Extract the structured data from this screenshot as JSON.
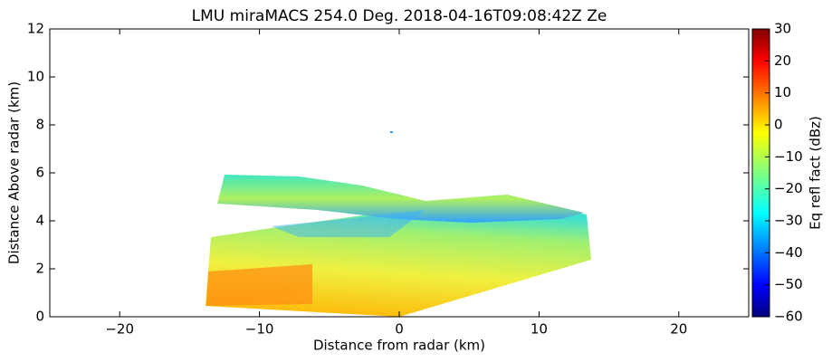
{
  "chart_data": {
    "type": "heatmap",
    "title": "LMU miraMACS 254.0 Deg. 2018-04-16T09:08:42Z  Ze",
    "x_label": "Distance from radar (km)",
    "y_label": "Distance Above radar  (km)",
    "colorbar_label": "Eq refl fact (dBz)",
    "xlim": [
      -25,
      25
    ],
    "xticks": [
      {
        "value": -20,
        "label": "−20"
      },
      {
        "value": -10,
        "label": "−10"
      },
      0,
      10,
      20
    ],
    "ylim": [
      0,
      12
    ],
    "yticks": [
      0,
      2,
      4,
      6,
      8,
      10,
      12
    ],
    "clim": [
      -60,
      30
    ],
    "cticks": [
      {
        "value": -60,
        "label": "−60"
      },
      {
        "value": -50,
        "label": "−50"
      },
      {
        "value": -40,
        "label": "−40"
      },
      {
        "value": -30,
        "label": "−30"
      },
      {
        "value": -20,
        "label": "−20"
      },
      {
        "value": -10,
        "label": "−10"
      },
      0,
      10,
      20,
      30
    ]
  }
}
